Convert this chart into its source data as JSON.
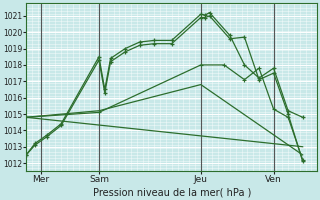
{
  "background_color": "#c8e8e8",
  "grid_color_h": "#a8c8c8",
  "grid_color_v": "#a8c8c8",
  "line_color": "#2d6e2d",
  "xlabel": "Pression niveau de la mer( hPa )",
  "ylim": [
    1011.5,
    1021.8
  ],
  "xlim": [
    0,
    10
  ],
  "yticks": [
    1012,
    1013,
    1014,
    1015,
    1016,
    1017,
    1018,
    1019,
    1020,
    1021
  ],
  "xtick_positions": [
    0.5,
    2.5,
    6.0,
    8.5
  ],
  "xtick_labels": [
    "Mer",
    "Sam",
    "Jeu",
    "Ven"
  ],
  "vlines": [
    0.5,
    2.5,
    6.0,
    8.5
  ],
  "line1_x": [
    0.0,
    0.3,
    0.7,
    1.2,
    2.5,
    2.7,
    2.9,
    3.4,
    3.9,
    4.4,
    5.0,
    6.0,
    6.15,
    6.3,
    7.0,
    7.5,
    8.0,
    8.5,
    9.0,
    9.5
  ],
  "line1_y": [
    1012.5,
    1013.2,
    1013.7,
    1014.4,
    1018.5,
    1016.5,
    1018.4,
    1019.0,
    1019.4,
    1019.5,
    1019.5,
    1021.1,
    1021.05,
    1021.2,
    1019.8,
    1018.0,
    1017.2,
    1017.8,
    1015.2,
    1014.8
  ],
  "line2_x": [
    0.0,
    0.3,
    0.7,
    1.2,
    2.5,
    2.7,
    2.9,
    3.4,
    3.9,
    4.4,
    5.0,
    6.0,
    6.15,
    6.3,
    7.0,
    7.5,
    8.0,
    8.5,
    9.0,
    9.5
  ],
  "line2_y": [
    1012.5,
    1013.1,
    1013.6,
    1014.3,
    1018.3,
    1016.3,
    1018.2,
    1018.8,
    1019.2,
    1019.3,
    1019.3,
    1020.9,
    1020.9,
    1021.0,
    1019.6,
    1019.7,
    1017.1,
    1017.5,
    1015.0,
    1012.1
  ],
  "line3_x": [
    0.0,
    2.5,
    6.0,
    6.8,
    7.5,
    8.0,
    8.5,
    9.0,
    9.5
  ],
  "line3_y": [
    1014.8,
    1015.1,
    1018.0,
    1018.0,
    1017.1,
    1017.8,
    1015.3,
    1014.8,
    1012.2
  ],
  "line4_x": [
    0.0,
    2.5,
    6.0,
    9.5
  ],
  "line4_y": [
    1014.8,
    1015.2,
    1016.8,
    1012.5
  ],
  "line5_x": [
    0.0,
    9.5
  ],
  "line5_y": [
    1014.8,
    1013.0
  ]
}
